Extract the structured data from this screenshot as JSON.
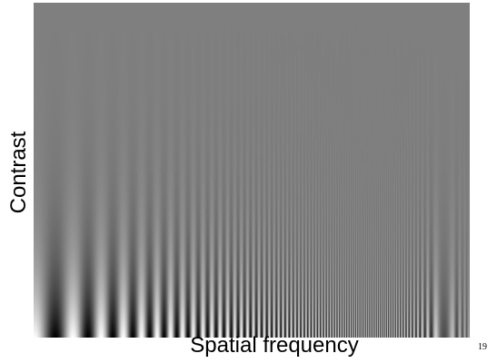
{
  "figure": {
    "y_axis_label": "Contrast",
    "x_axis_label": "Spatial frequency",
    "slide_number": "19"
  },
  "grating": {
    "type": "Campbell-Robson contrast sensitivity chart",
    "description_note_visible": false,
    "background_gray": "#7f7f7f",
    "light_color": "#ffffff",
    "dark_color": "#000000"
  }
}
